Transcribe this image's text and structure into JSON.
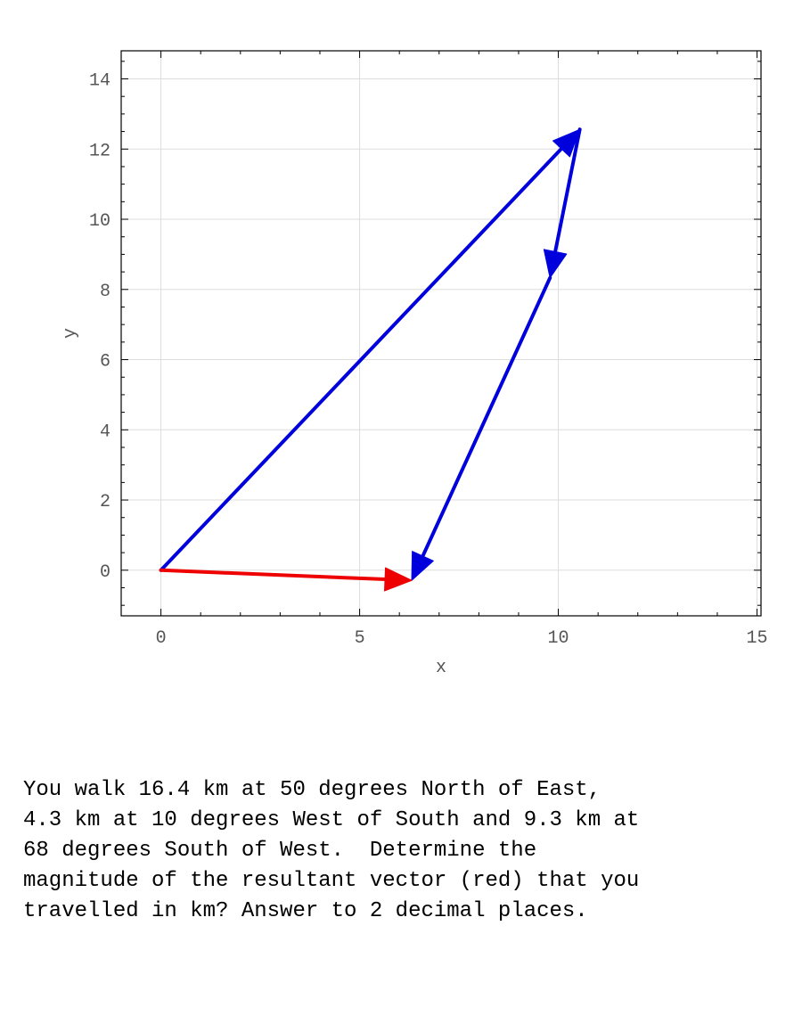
{
  "chart_data": {
    "type": "vector-plot",
    "xlabel": "x",
    "ylabel": "y",
    "xlim": [
      -1,
      15.1
    ],
    "ylim": [
      -1.3,
      14.8
    ],
    "xticks": [
      0,
      5,
      10,
      15
    ],
    "yticks": [
      0,
      2,
      4,
      6,
      8,
      10,
      12,
      14
    ],
    "grid": true,
    "vectors": [
      {
        "from": [
          0,
          0
        ],
        "to": [
          10.54,
          12.56
        ],
        "color": "#0000dd"
      },
      {
        "from": [
          10.54,
          12.56
        ],
        "to": [
          9.79,
          8.33
        ],
        "color": "#0000dd"
      },
      {
        "from": [
          9.79,
          8.33
        ],
        "to": [
          6.31,
          -0.29
        ],
        "color": "#0000dd"
      },
      {
        "from": [
          0,
          0
        ],
        "to": [
          6.31,
          -0.29
        ],
        "color": "#ee0000"
      }
    ]
  },
  "question": {
    "lines": [
      "You walk 16.4 km at 50 degrees North of East,",
      "4.3 km at 10 degrees West of South and 9.3 km at",
      "68 degrees South of West.  Determine the",
      "magnitude of the resultant vector (red) that you",
      "travelled in km? Answer to 2 decimal places."
    ]
  }
}
